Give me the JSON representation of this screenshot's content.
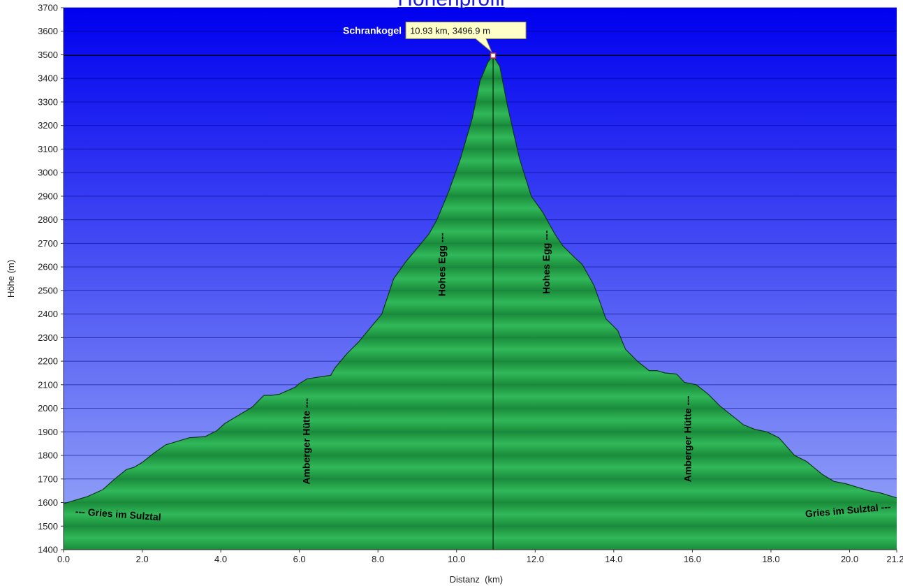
{
  "chart_data": {
    "type": "area",
    "title": "Höhenprofil",
    "xlabel": "Distanz  (km)",
    "ylabel": "Höhe (m)",
    "xlim": [
      0,
      21.2
    ],
    "ylim": [
      1400,
      3700
    ],
    "x_ticks": [
      0,
      2,
      4,
      6,
      8,
      10,
      12,
      14,
      16,
      18,
      20,
      21.2
    ],
    "x_tick_labels": [
      "0.0",
      "2.0",
      "4.0",
      "6.0",
      "8.0",
      "10.0",
      "12.0",
      "14.0",
      "16.0",
      "18.0",
      "20.0",
      "21.2"
    ],
    "y_ticks": [
      1400,
      1500,
      1600,
      1700,
      1800,
      1900,
      2000,
      2100,
      2200,
      2300,
      2400,
      2500,
      2600,
      2700,
      2800,
      2900,
      3000,
      3100,
      3200,
      3300,
      3400,
      3500,
      3600,
      3700
    ],
    "grid": true,
    "colors": {
      "sky_top": "#0000ef",
      "sky_bottom": "#9aaaf8",
      "fill_dark": "#1a8c3a",
      "fill_light": "#31b85a",
      "outline": "#0c3a18",
      "tooltip_bg": "#ffffc8"
    },
    "series": [
      {
        "x": [
          0,
          0.3,
          0.6,
          1.0,
          1.3,
          1.6,
          1.8,
          2.0,
          2.3,
          2.6,
          2.9,
          3.2,
          3.6,
          3.9,
          4.1,
          4.4,
          4.8,
          5.1,
          5.3,
          5.5,
          5.9,
          6.0,
          6.2,
          6.4,
          6.6,
          6.8,
          6.9,
          7.2,
          7.5,
          7.8,
          8.1,
          8.2,
          8.4,
          8.7,
          9.0,
          9.3,
          9.5,
          9.8,
          10.1,
          10.4,
          10.6,
          10.8,
          10.93,
          11.1,
          11.3,
          11.6,
          11.9,
          12.2,
          12.5,
          12.7,
          13.0,
          13.2,
          13.5,
          13.8,
          14.1,
          14.3,
          14.6,
          14.9,
          15.1,
          15.3,
          15.6,
          15.8,
          16.1,
          16.4,
          16.7,
          17.0,
          17.3,
          17.6,
          17.9,
          18.2,
          18.6,
          18.9,
          19.3,
          19.6,
          19.9,
          20.2,
          20.5,
          20.8,
          21.2
        ],
        "y": [
          1595,
          1610,
          1625,
          1655,
          1700,
          1740,
          1750,
          1770,
          1810,
          1845,
          1860,
          1875,
          1880,
          1905,
          1935,
          1965,
          2005,
          2055,
          2055,
          2060,
          2090,
          2105,
          2125,
          2130,
          2135,
          2140,
          2170,
          2230,
          2280,
          2340,
          2400,
          2450,
          2550,
          2620,
          2680,
          2740,
          2800,
          2920,
          3060,
          3230,
          3390,
          3470,
          3497,
          3450,
          3280,
          3060,
          2900,
          2830,
          2740,
          2690,
          2640,
          2610,
          2520,
          2380,
          2330,
          2250,
          2200,
          2160,
          2160,
          2150,
          2145,
          2110,
          2100,
          2060,
          2010,
          1970,
          1930,
          1910,
          1900,
          1875,
          1800,
          1775,
          1720,
          1690,
          1680,
          1665,
          1650,
          1640,
          1620
        ]
      }
    ],
    "peak": {
      "x": 10.93,
      "y": 3496.9,
      "name": "Schrankogel",
      "tooltip": "10.93 km, 3496.9 m"
    },
    "annotations": [
      {
        "text": "--- Gries im Sulztal",
        "x": 0.3,
        "y": 1560,
        "rotate": 4,
        "anchor": "start"
      },
      {
        "text": "Amberger Hütte ---",
        "x": 6.2,
        "y": 1860,
        "rotate": -90,
        "anchor": "middle"
      },
      {
        "text": "Hohes Egg ---",
        "x": 9.65,
        "y": 2610,
        "rotate": -90,
        "anchor": "middle"
      },
      {
        "text": "Hohes Egg ---",
        "x": 12.3,
        "y": 2620,
        "rotate": -90,
        "anchor": "middle"
      },
      {
        "text": "Amberger Hütte ---",
        "x": 15.9,
        "y": 1870,
        "rotate": -90,
        "anchor": "middle"
      },
      {
        "text": "Gries im Sulztal ---",
        "x": 21.05,
        "y": 1580,
        "rotate": -5,
        "anchor": "end"
      }
    ]
  }
}
